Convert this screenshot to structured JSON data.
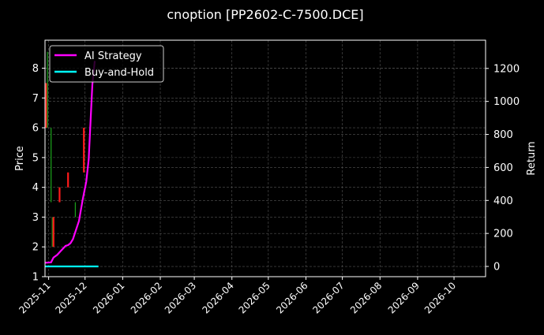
{
  "chart_data": {
    "type": "line",
    "title": "cnoption [PP2602-C-7500.DCE]",
    "xlabel": "",
    "ylabel": "Price",
    "ylabel_right": "Return",
    "xlim": [
      "2025-10-29",
      "2026-10-27"
    ],
    "ylim": [
      1,
      8.94
    ],
    "ylim_right": [
      -62,
      1371
    ],
    "x_ticks": [
      "2025-11",
      "2025-12",
      "2026-01",
      "2026-02",
      "2026-03",
      "2026-04",
      "2026-05",
      "2026-06",
      "2026-07",
      "2026-08",
      "2026-09",
      "2026-10"
    ],
    "y_ticks": [
      1,
      2,
      3,
      4,
      5,
      6,
      7,
      8
    ],
    "y_ticks_right": [
      0,
      200,
      400,
      600,
      800,
      1000,
      1200
    ],
    "grid": true,
    "legend_position": "top-left",
    "background": "#000000",
    "price_bars": [
      {
        "date": "2025-10-30",
        "low": 6.0,
        "high": 7.5,
        "color": "#ff1a1a"
      },
      {
        "date": "2025-10-31",
        "low": 6.0,
        "high": 8.55,
        "color": "#1a9a1a"
      },
      {
        "date": "2025-11-03",
        "low": 3.5,
        "high": 6.0,
        "color": "#1a9a1a"
      },
      {
        "date": "2025-11-04",
        "low": 2.0,
        "high": 3.0,
        "color": "#1a9a1a"
      },
      {
        "date": "2025-11-05",
        "low": 2.0,
        "high": 3.0,
        "color": "#ff1a1a"
      },
      {
        "date": "2025-11-10",
        "low": 3.5,
        "high": 4.0,
        "color": "#ff1a1a"
      },
      {
        "date": "2025-11-17",
        "low": 4.0,
        "high": 4.5,
        "color": "#ff1a1a"
      },
      {
        "date": "2025-11-23",
        "low": 3.0,
        "high": 3.5,
        "color": "#1a9a1a"
      },
      {
        "date": "2025-11-30",
        "low": 4.5,
        "high": 6.0,
        "color": "#ff1a1a"
      }
    ],
    "series": [
      {
        "name": "AI Strategy",
        "color": "#ff00ff",
        "axis": "right",
        "x": [
          "2025-10-29",
          "2025-11-03",
          "2025-11-05",
          "2025-11-08",
          "2025-11-11",
          "2025-11-15",
          "2025-11-17",
          "2025-11-19",
          "2025-11-21",
          "2025-11-26",
          "2025-11-29",
          "2025-12-02",
          "2025-12-04",
          "2025-12-07",
          "2025-12-09"
        ],
        "values": [
          22,
          25,
          54,
          70,
          94,
          125,
          129,
          141,
          165,
          276,
          403,
          514,
          649,
          1101,
          1245
        ]
      },
      {
        "name": "Buy-and-Hold",
        "color": "#00ffff",
        "axis": "right",
        "x": [
          "2025-10-29",
          "2025-12-12"
        ],
        "values": [
          0,
          0
        ]
      }
    ]
  }
}
